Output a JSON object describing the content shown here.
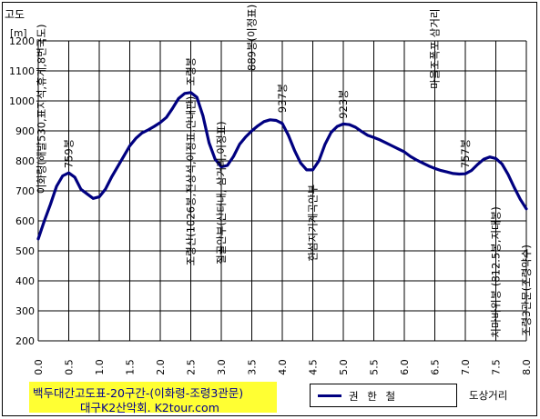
{
  "chart_data": {
    "type": "line",
    "ylabel": "고도",
    "yunit": "[m]",
    "xlim": [
      0,
      8
    ],
    "ylim": [
      200,
      1200
    ],
    "yticks": [
      200,
      300,
      400,
      500,
      600,
      700,
      800,
      900,
      1000,
      1100,
      1200
    ],
    "xticks": [
      "0.0",
      "0.5",
      "1.0",
      "1.5",
      "2.0",
      "2.5",
      "3.0",
      "3.5",
      "4.0",
      "4.5",
      "5.0",
      "5.5",
      "6.0",
      "6.5",
      "7.0",
      "7.5",
      "8.0"
    ],
    "grid": true,
    "series": [
      {
        "name": "권 한 철",
        "color": "#000080",
        "points": [
          [
            0.0,
            540
          ],
          [
            0.1,
            600
          ],
          [
            0.2,
            655
          ],
          [
            0.3,
            715
          ],
          [
            0.4,
            750
          ],
          [
            0.5,
            760
          ],
          [
            0.6,
            745
          ],
          [
            0.7,
            705
          ],
          [
            0.8,
            690
          ],
          [
            0.9,
            675
          ],
          [
            1.0,
            680
          ],
          [
            1.1,
            705
          ],
          [
            1.2,
            745
          ],
          [
            1.3,
            780
          ],
          [
            1.4,
            815
          ],
          [
            1.5,
            850
          ],
          [
            1.6,
            875
          ],
          [
            1.7,
            893
          ],
          [
            1.8,
            903
          ],
          [
            1.9,
            915
          ],
          [
            2.0,
            928
          ],
          [
            2.1,
            945
          ],
          [
            2.2,
            975
          ],
          [
            2.3,
            1008
          ],
          [
            2.4,
            1025
          ],
          [
            2.5,
            1028
          ],
          [
            2.6,
            1012
          ],
          [
            2.7,
            950
          ],
          [
            2.8,
            860
          ],
          [
            2.9,
            805
          ],
          [
            3.0,
            780
          ],
          [
            3.1,
            785
          ],
          [
            3.2,
            815
          ],
          [
            3.3,
            855
          ],
          [
            3.4,
            880
          ],
          [
            3.5,
            900
          ],
          [
            3.6,
            917
          ],
          [
            3.7,
            931
          ],
          [
            3.8,
            937
          ],
          [
            3.9,
            935
          ],
          [
            4.0,
            925
          ],
          [
            4.1,
            885
          ],
          [
            4.2,
            835
          ],
          [
            4.3,
            793
          ],
          [
            4.4,
            770
          ],
          [
            4.5,
            770
          ],
          [
            4.6,
            800
          ],
          [
            4.7,
            855
          ],
          [
            4.8,
            895
          ],
          [
            4.9,
            915
          ],
          [
            5.0,
            923
          ],
          [
            5.1,
            921
          ],
          [
            5.2,
            912
          ],
          [
            5.3,
            898
          ],
          [
            5.4,
            885
          ],
          [
            5.5,
            878
          ],
          [
            5.6,
            870
          ],
          [
            5.7,
            860
          ],
          [
            5.8,
            850
          ],
          [
            5.9,
            840
          ],
          [
            6.0,
            830
          ],
          [
            6.1,
            815
          ],
          [
            6.2,
            803
          ],
          [
            6.3,
            793
          ],
          [
            6.4,
            783
          ],
          [
            6.5,
            775
          ],
          [
            6.6,
            768
          ],
          [
            6.7,
            763
          ],
          [
            6.8,
            758
          ],
          [
            6.9,
            756
          ],
          [
            7.0,
            757
          ],
          [
            7.1,
            768
          ],
          [
            7.2,
            788
          ],
          [
            7.3,
            805
          ],
          [
            7.4,
            813
          ],
          [
            7.5,
            808
          ],
          [
            7.6,
            790
          ],
          [
            7.7,
            755
          ],
          [
            7.8,
            712
          ],
          [
            7.9,
            672
          ],
          [
            8.0,
            640
          ]
        ]
      }
    ],
    "annotations": [
      {
        "text": "이화령(해발530,표지석,휴게,8번국도)",
        "x": 0.05,
        "y": 690
      },
      {
        "text": "759봉",
        "x": 0.5,
        "y": 775
      },
      {
        "text": "조령산(1026봉,전상석,이정표,안내판)",
        "x": 2.5,
        "y": 450
      },
      {
        "text": "조령봉",
        "x": 2.5,
        "y": 1050
      },
      {
        "text": "절골안부(산터내, 삼거리,이정표)",
        "x": 3.0,
        "y": 455
      },
      {
        "text": "889봉(이정표)",
        "x": 3.5,
        "y": 1100
      },
      {
        "text": "937봉",
        "x": 4.0,
        "y": 960
      },
      {
        "text": "한섬지기계곡안부",
        "x": 4.5,
        "y": 465
      },
      {
        "text": "923봉",
        "x": 5.0,
        "y": 940
      },
      {
        "text": "마을조폭포 삼거리",
        "x": 6.5,
        "y": 1040
      },
      {
        "text": "757봉",
        "x": 7.0,
        "y": 775
      },
      {
        "text": "치마바위봉 (812.5봉,지대봉)",
        "x": 7.5,
        "y": 210
      },
      {
        "text": "조령3관문(조령약수)",
        "x": 8.0,
        "y": 215
      }
    ]
  },
  "caption": {
    "line1": "백두대간고도표-20구간-(이화령-조령3관문)",
    "line2": "대구K2산악회.  K2tour.com"
  },
  "aside_label": "도상거리"
}
